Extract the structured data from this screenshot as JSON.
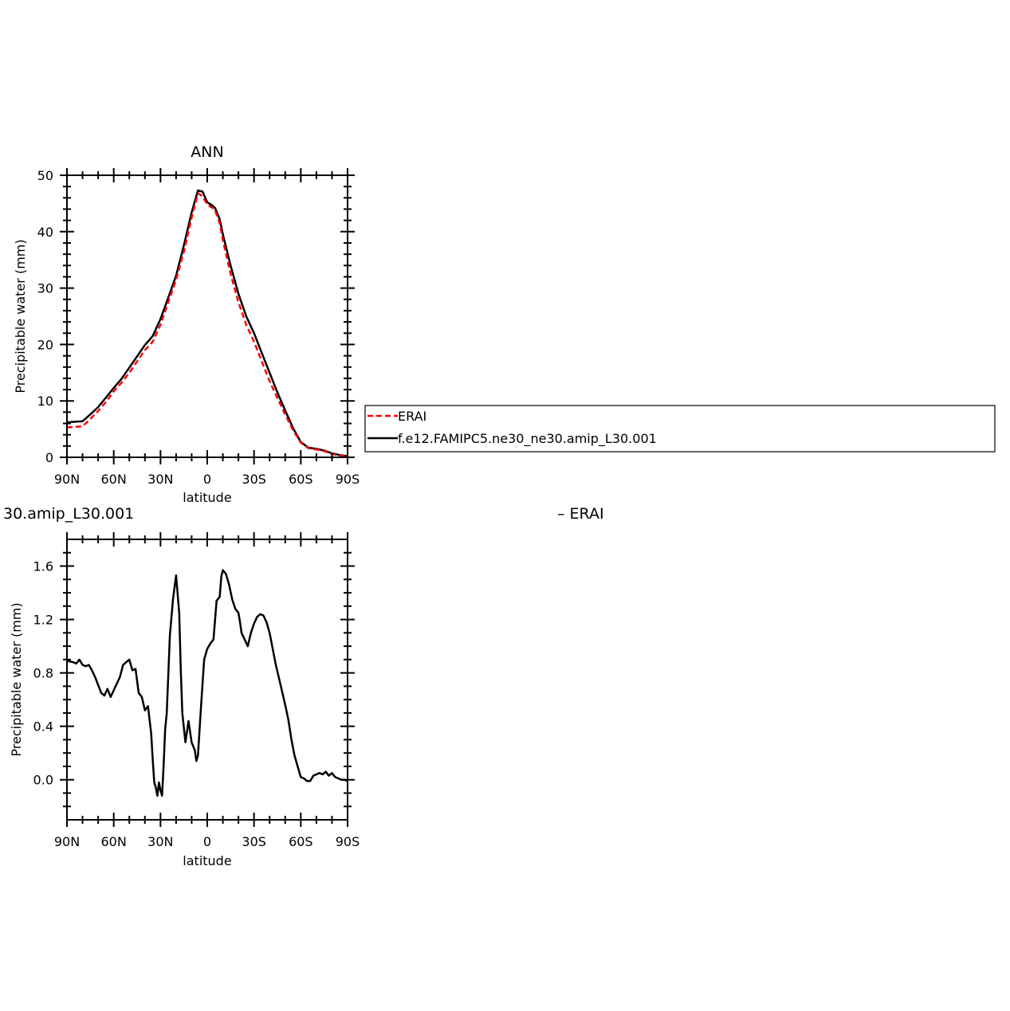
{
  "chart_data": [
    {
      "type": "line",
      "title": "ANN",
      "xlabel": "latitude",
      "ylabel": "Precipitable water (mm)",
      "xlim": [
        90,
        -90
      ],
      "ylim": [
        0,
        50
      ],
      "x_ticks": [
        90,
        60,
        30,
        0,
        -30,
        -60,
        -90
      ],
      "x_tick_labels": [
        "90N",
        "60N",
        "30N",
        "0",
        "30S",
        "60S",
        "90S"
      ],
      "y_ticks": [
        0,
        10,
        20,
        30,
        40,
        50
      ],
      "y_tick_labels": [
        "0",
        "10",
        "20",
        "30",
        "40",
        "50"
      ],
      "grid": false,
      "series": [
        {
          "name": "ERAI",
          "color": "#ff0000",
          "dash": "dashed",
          "x": [
            90,
            85,
            80,
            75,
            70,
            65,
            60,
            55,
            50,
            45,
            40,
            35,
            30,
            25,
            20,
            15,
            10,
            6,
            3,
            0,
            -3,
            -5,
            -8,
            -10,
            -15,
            -20,
            -25,
            -30,
            -35,
            -40,
            -45,
            -50,
            -55,
            -60,
            -65,
            -70,
            -75,
            -80,
            -85,
            -90
          ],
          "y": [
            5.3,
            5.4,
            5.5,
            6.8,
            8.2,
            9.8,
            11.7,
            13.2,
            15.0,
            17.0,
            19.0,
            20.5,
            23.5,
            27.5,
            31.5,
            36.5,
            42.5,
            46.8,
            46.3,
            44.8,
            44.3,
            43.8,
            41.5,
            38.5,
            32.5,
            27.5,
            23.5,
            20.5,
            17.0,
            13.5,
            10.5,
            7.6,
            4.8,
            2.6,
            1.6,
            1.4,
            1.1,
            0.6,
            0.3,
            0.2
          ]
        },
        {
          "name": "f.e12.FAMIPC5.ne30_ne30.amip_L30.001",
          "color": "#000000",
          "dash": "solid",
          "x": [
            90,
            85,
            80,
            75,
            70,
            65,
            60,
            55,
            50,
            45,
            40,
            35,
            30,
            25,
            20,
            15,
            10,
            6,
            3,
            0,
            -3,
            -5,
            -8,
            -10,
            -15,
            -20,
            -25,
            -30,
            -35,
            -40,
            -45,
            -50,
            -55,
            -60,
            -65,
            -70,
            -75,
            -80,
            -85,
            -90
          ],
          "y": [
            6.2,
            6.3,
            6.4,
            7.6,
            8.9,
            10.6,
            12.3,
            13.9,
            15.9,
            17.9,
            19.9,
            21.5,
            24.5,
            28.3,
            32.2,
            37.6,
            43.4,
            47.3,
            47.1,
            45.2,
            44.7,
            44.2,
            42.2,
            39.5,
            34.0,
            29.0,
            25.0,
            22.0,
            18.5,
            15.0,
            11.5,
            8.3,
            5.2,
            2.7,
            1.7,
            1.5,
            1.2,
            0.7,
            0.4,
            0.2
          ]
        }
      ],
      "legend": {
        "placement": "right",
        "entries": [
          "ERAI",
          "f.e12.FAMIPC5.ne30_ne30.amip_L30.001"
        ]
      }
    },
    {
      "type": "line",
      "title_left": "30.amip_L30.001",
      "title_right": "– ERAI",
      "xlabel": "latitude",
      "ylabel": "Precipitable water (mm)",
      "xlim": [
        90,
        -90
      ],
      "ylim": [
        -0.3,
        1.8
      ],
      "x_ticks": [
        90,
        60,
        30,
        0,
        -30,
        -60,
        -90
      ],
      "x_tick_labels": [
        "90N",
        "60N",
        "30N",
        "0",
        "30S",
        "60S",
        "90S"
      ],
      "y_ticks": [
        0.0,
        0.4,
        0.8,
        1.2,
        1.6
      ],
      "y_tick_labels": [
        "0.0",
        "0.4",
        "0.8",
        "1.2",
        "1.6"
      ],
      "grid": false,
      "series": [
        {
          "color": "#000000",
          "x": [
            90,
            86,
            84,
            82,
            80,
            78,
            76,
            74,
            72,
            70,
            68,
            66,
            64,
            62,
            60,
            58,
            56,
            54,
            52,
            50,
            48,
            46,
            44,
            42,
            40,
            38,
            37,
            36,
            35,
            34,
            33,
            32,
            31,
            30,
            29,
            28,
            27,
            26,
            24,
            22,
            20,
            18,
            17,
            16,
            14,
            12,
            10,
            8,
            7,
            6,
            4,
            2,
            0,
            -2,
            -4,
            -6,
            -8,
            -9,
            -10,
            -12,
            -14,
            -16,
            -18,
            -20,
            -21,
            -22,
            -24,
            -26,
            -28,
            -30,
            -32,
            -34,
            -36,
            -38,
            -40,
            -42,
            -44,
            -46,
            -48,
            -50,
            -52,
            -54,
            -56,
            -58,
            -60,
            -62,
            -64,
            -66,
            -68,
            -70,
            -72,
            -74,
            -76,
            -78,
            -80,
            -82,
            -84,
            -86,
            -88,
            -90
          ],
          "y": [
            0.89,
            0.88,
            0.87,
            0.9,
            0.86,
            0.85,
            0.86,
            0.82,
            0.77,
            0.71,
            0.65,
            0.63,
            0.68,
            0.62,
            0.67,
            0.72,
            0.77,
            0.86,
            0.88,
            0.9,
            0.82,
            0.83,
            0.65,
            0.62,
            0.52,
            0.55,
            0.45,
            0.35,
            0.15,
            -0.02,
            -0.06,
            -0.12,
            -0.02,
            -0.08,
            -0.12,
            0.1,
            0.38,
            0.5,
            1.08,
            1.35,
            1.53,
            1.25,
            0.82,
            0.5,
            0.28,
            0.44,
            0.28,
            0.22,
            0.14,
            0.18,
            0.55,
            0.9,
            0.98,
            1.02,
            1.05,
            1.34,
            1.37,
            1.52,
            1.57,
            1.54,
            1.46,
            1.35,
            1.28,
            1.25,
            1.18,
            1.1,
            1.05,
            1.0,
            1.1,
            1.17,
            1.22,
            1.24,
            1.23,
            1.18,
            1.1,
            0.98,
            0.86,
            0.76,
            0.66,
            0.56,
            0.45,
            0.3,
            0.18,
            0.1,
            0.02,
            0.01,
            -0.01,
            -0.01,
            0.03,
            0.04,
            0.05,
            0.04,
            0.06,
            0.03,
            0.05,
            0.02,
            0.01,
            0.0,
            0.0,
            -0.01
          ]
        }
      ]
    }
  ]
}
